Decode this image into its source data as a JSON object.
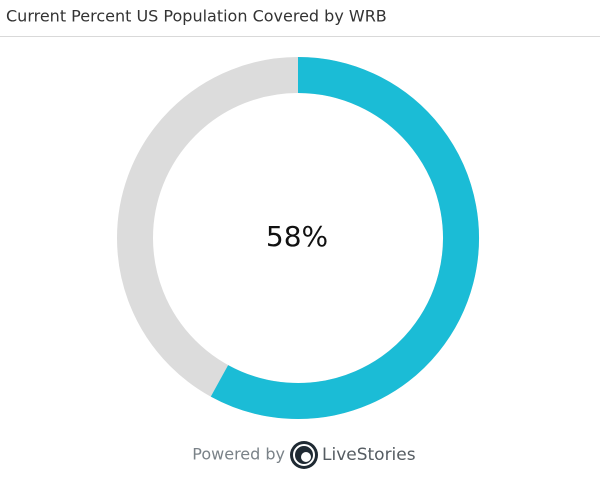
{
  "chart_data": {
    "type": "donut",
    "title": "Current Percent US Population Covered by WRB",
    "values": [
      58
    ],
    "value_labels": [
      "58%"
    ],
    "color": "#1bbcd6",
    "track_color": "#dcdcdc",
    "ylim": [
      0,
      100
    ]
  },
  "footer": {
    "prefix": "Powered by",
    "brand": "LiveStories"
  }
}
